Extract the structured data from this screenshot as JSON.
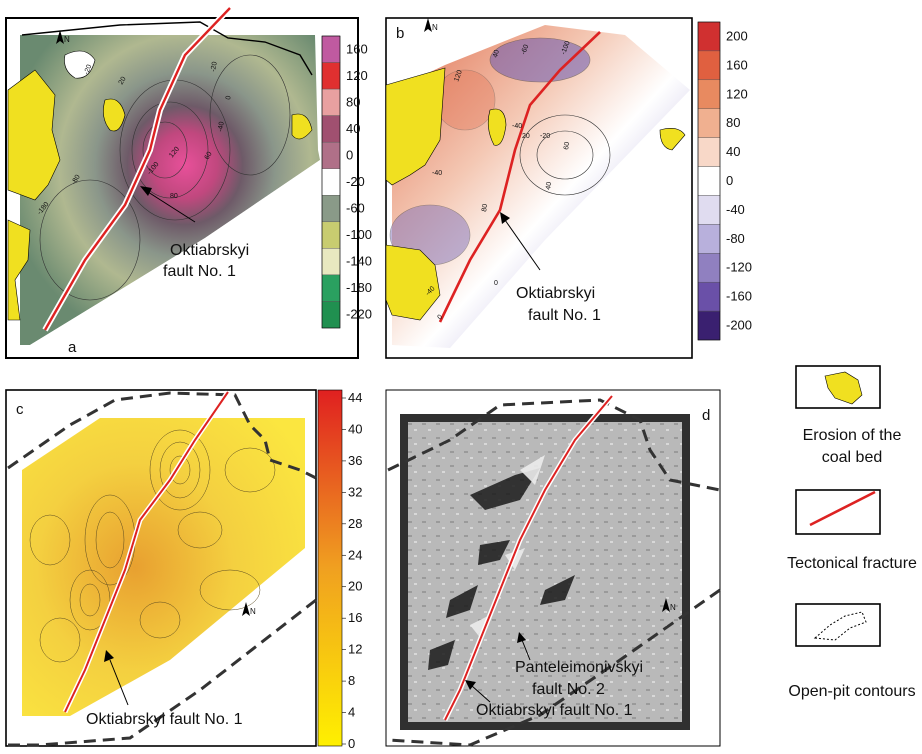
{
  "panels": {
    "a": {
      "letter": "a",
      "fault_label_line1": "Oktiabrskyi",
      "fault_label_line2": "fault No. 1",
      "contour_labels": [
        "-20",
        "20",
        "0",
        "-20",
        "120",
        "-100",
        "80",
        "60",
        "-40",
        "-180",
        "-80"
      ],
      "colorbar": [
        {
          "value": "160",
          "color": "#c05aa0"
        },
        {
          "value": "120",
          "color": "#e03030"
        },
        {
          "value": "80",
          "color": "#e8a0a0"
        },
        {
          "value": "40",
          "color": "#a05070"
        },
        {
          "value": "0",
          "color": "#b07088"
        },
        {
          "value": "-20",
          "color": "#ffffff"
        },
        {
          "value": "-60",
          "color": "#8a9a88"
        },
        {
          "value": "-100",
          "color": "#c8cc70"
        },
        {
          "value": "-140",
          "color": "#e8e8c0"
        },
        {
          "value": "-180",
          "color": "#2aa060"
        },
        {
          "value": "-220",
          "color": "#209050"
        }
      ]
    },
    "b": {
      "letter": "b",
      "fault_label_line1": "Oktiabrskyi",
      "fault_label_line2": "fault No. 1",
      "contour_labels": [
        "120",
        "40",
        "-60",
        "-100",
        "-40",
        "20",
        "-20",
        "60",
        "40",
        "-40",
        "80",
        "0",
        "0",
        "-40"
      ],
      "colorbar": [
        {
          "value": "200",
          "color": "#d03030"
        },
        {
          "value": "160",
          "color": "#e06040"
        },
        {
          "value": "120",
          "color": "#e88a60"
        },
        {
          "value": "80",
          "color": "#f0b090"
        },
        {
          "value": "40",
          "color": "#f8d8c8"
        },
        {
          "value": "0",
          "color": "#ffffff"
        },
        {
          "value": "-40",
          "color": "#e0dcf0"
        },
        {
          "value": "-80",
          "color": "#b8b0dc"
        },
        {
          "value": "-120",
          "color": "#9080c0"
        },
        {
          "value": "-160",
          "color": "#6a50a8"
        },
        {
          "value": "-200",
          "color": "#3a2070"
        }
      ]
    },
    "c": {
      "letter": "c",
      "fault_label": "Oktiabrskyi fault No. 1",
      "colorbar": [
        "44",
        "40",
        "36",
        "32",
        "28",
        "24",
        "20",
        "16",
        "12",
        "8",
        "4",
        "0"
      ],
      "colorbar_low": "#ffe800",
      "colorbar_high": "#e02020"
    },
    "d": {
      "letter": "d",
      "fault2_line1": "Panteleimonivskyi",
      "fault2_line2": "fault No. 2",
      "fault1_label": "Oktiabrskyi fault No. 1"
    }
  },
  "legend": {
    "items": [
      {
        "label_line1": "Erosion of the",
        "label_line2": "coal bed",
        "symbol": "erosion-patch"
      },
      {
        "label_line1": "Tectonical fracture",
        "label_line2": "",
        "symbol": "fault-line"
      },
      {
        "label_line1": "Open-pit contours",
        "label_line2": "",
        "symbol": "dashed-contour"
      }
    ]
  },
  "colors": {
    "fault": "#dd2222",
    "erosion": "#f0e020",
    "pit": "#333333"
  },
  "north_label": "N"
}
